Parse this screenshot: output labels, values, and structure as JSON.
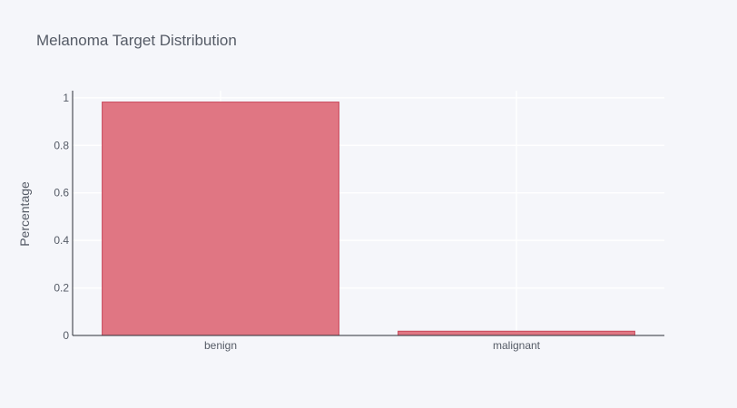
{
  "chart_data": {
    "type": "bar",
    "title": "Melanoma Target Distribution",
    "xlabel": "",
    "ylabel": "Percentage",
    "categories": [
      "benign",
      "malignant"
    ],
    "values": [
      0.982,
      0.018
    ],
    "ylim": [
      0,
      1.03
    ],
    "yticks": [
      0,
      0.2,
      0.4,
      0.6,
      0.8,
      1
    ],
    "ytick_labels": [
      "0",
      "0.2",
      "0.4",
      "0.6",
      "0.8",
      "1"
    ],
    "bar_color": "#e07683",
    "bar_edge_color": "#c8475a",
    "grid": true,
    "legend": false
  }
}
